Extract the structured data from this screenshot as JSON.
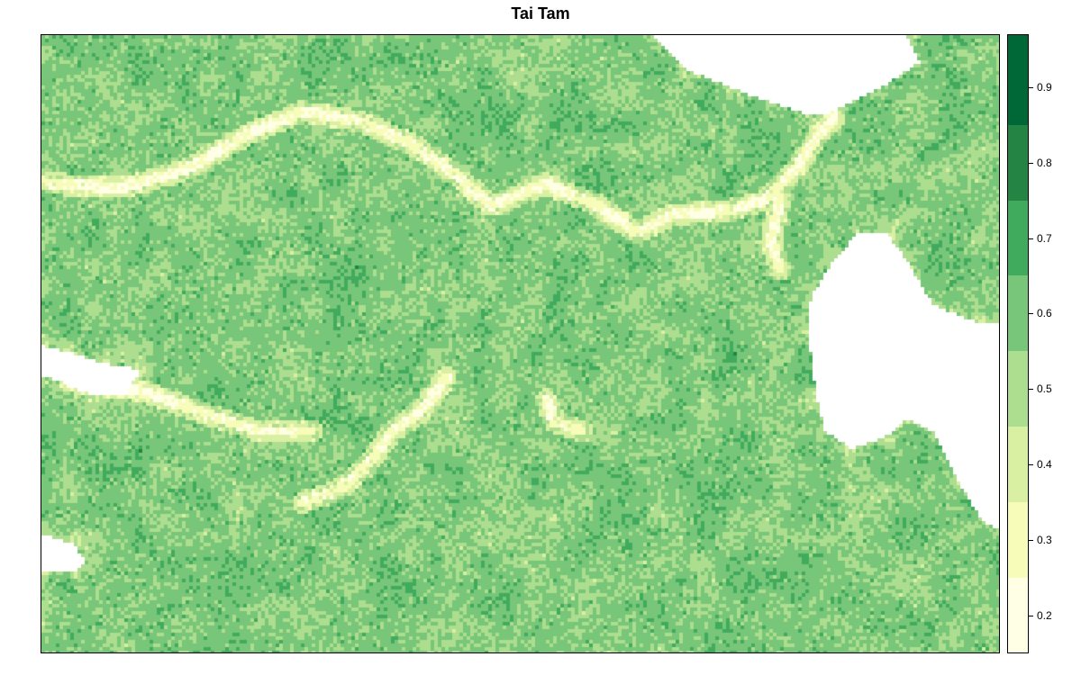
{
  "title": "Tai Tam",
  "chart_data": {
    "type": "heatmap",
    "title": "Tai Tam",
    "value_range": [
      0.15,
      0.97
    ],
    "legend_placement": "right",
    "legend": {
      "breaks": [
        0.15,
        0.25,
        0.35,
        0.45,
        0.55,
        0.65,
        0.75,
        0.85,
        0.97
      ],
      "colors": [
        "#ffffe5",
        "#f7fcb9",
        "#d9f0a3",
        "#addd8e",
        "#78c679",
        "#41ab5d",
        "#238443",
        "#006837"
      ],
      "tick_labels": [
        "0.2",
        "0.3",
        "0.4",
        "0.5",
        "0.6",
        "0.7",
        "0.8",
        "0.9"
      ],
      "tick_values": [
        0.2,
        0.3,
        0.4,
        0.5,
        0.6,
        0.7,
        0.8,
        0.9
      ]
    },
    "no_data_color": "#ffffff",
    "typical_value": 0.58
  }
}
